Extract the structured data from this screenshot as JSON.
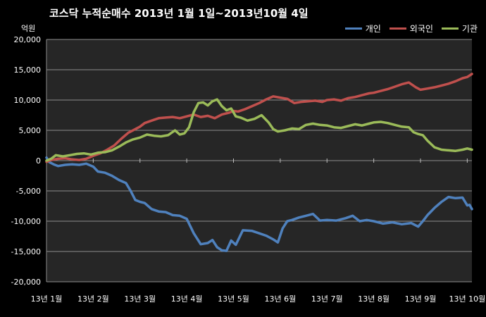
{
  "chart_data": {
    "type": "line",
    "title": "코스닥  누적순매수 2013년 1월 1일~2013년10월 4일",
    "ylabel": "억원",
    "ylim": [
      -20000,
      20000
    ],
    "yticks": [
      {
        "value": 20000,
        "label": "20,000"
      },
      {
        "value": 15000,
        "label": "15,000"
      },
      {
        "value": 10000,
        "label": "10,000"
      },
      {
        "value": 5000,
        "label": "5,000"
      },
      {
        "value": 0,
        "label": "0"
      },
      {
        "value": -5000,
        "label": "-5,000"
      },
      {
        "value": -10000,
        "label": "-10,000"
      },
      {
        "value": -15000,
        "label": "-15,000"
      },
      {
        "value": -20000,
        "label": "-20,000"
      }
    ],
    "xticks": [
      {
        "pos": 0.0,
        "label": "13년 1월"
      },
      {
        "pos": 1.0,
        "label": "13년 2월"
      },
      {
        "pos": 2.0,
        "label": "13년 3월"
      },
      {
        "pos": 3.0,
        "label": "13년 4월"
      },
      {
        "pos": 4.0,
        "label": "13년 5월"
      },
      {
        "pos": 5.0,
        "label": "13년 6월"
      },
      {
        "pos": 6.0,
        "label": "13년 7월"
      },
      {
        "pos": 7.0,
        "label": "13년 8월"
      },
      {
        "pos": 8.0,
        "label": "13년 9월"
      },
      {
        "pos": 9.0,
        "label": "13년 10월"
      }
    ],
    "xlim": [
      0,
      9.1
    ],
    "grid": true,
    "legend_position": "top-right",
    "series": [
      {
        "name": "개인",
        "color": "#4f81bd",
        "points": [
          [
            0.0,
            500
          ],
          [
            0.05,
            -200
          ],
          [
            0.15,
            -600
          ],
          [
            0.25,
            -900
          ],
          [
            0.4,
            -700
          ],
          [
            0.55,
            -600
          ],
          [
            0.7,
            -700
          ],
          [
            0.85,
            -500
          ],
          [
            1.0,
            -1000
          ],
          [
            1.1,
            -1800
          ],
          [
            1.25,
            -2000
          ],
          [
            1.4,
            -2500
          ],
          [
            1.55,
            -3200
          ],
          [
            1.7,
            -3700
          ],
          [
            1.8,
            -5000
          ],
          [
            1.9,
            -6500
          ],
          [
            2.0,
            -6800
          ],
          [
            2.1,
            -7000
          ],
          [
            2.25,
            -8000
          ],
          [
            2.4,
            -8400
          ],
          [
            2.55,
            -8500
          ],
          [
            2.7,
            -9000
          ],
          [
            2.85,
            -9100
          ],
          [
            3.0,
            -9600
          ],
          [
            3.15,
            -12000
          ],
          [
            3.3,
            -13800
          ],
          [
            3.45,
            -13600
          ],
          [
            3.55,
            -13100
          ],
          [
            3.65,
            -14300
          ],
          [
            3.75,
            -14800
          ],
          [
            3.85,
            -14900
          ],
          [
            3.95,
            -13200
          ],
          [
            4.05,
            -13900
          ],
          [
            4.2,
            -11500
          ],
          [
            4.4,
            -11600
          ],
          [
            4.55,
            -12000
          ],
          [
            4.7,
            -12400
          ],
          [
            4.85,
            -13000
          ],
          [
            4.95,
            -13500
          ],
          [
            5.05,
            -11200
          ],
          [
            5.15,
            -10000
          ],
          [
            5.25,
            -9800
          ],
          [
            5.4,
            -9400
          ],
          [
            5.55,
            -9100
          ],
          [
            5.7,
            -8800
          ],
          [
            5.85,
            -9900
          ],
          [
            6.0,
            -9800
          ],
          [
            6.2,
            -9900
          ],
          [
            6.4,
            -9500
          ],
          [
            6.55,
            -9100
          ],
          [
            6.7,
            -10000
          ],
          [
            6.85,
            -9800
          ],
          [
            7.0,
            -10000
          ],
          [
            7.2,
            -10400
          ],
          [
            7.4,
            -10200
          ],
          [
            7.6,
            -10500
          ],
          [
            7.8,
            -10300
          ],
          [
            7.95,
            -10900
          ],
          [
            8.05,
            -10000
          ],
          [
            8.15,
            -9000
          ],
          [
            8.3,
            -7800
          ],
          [
            8.45,
            -6800
          ],
          [
            8.6,
            -6000
          ],
          [
            8.75,
            -6200
          ],
          [
            8.9,
            -6100
          ],
          [
            9.0,
            -7400
          ],
          [
            9.05,
            -7300
          ],
          [
            9.1,
            -8000
          ]
        ]
      },
      {
        "name": "외국인",
        "color": "#c0504d",
        "points": [
          [
            0.0,
            -200
          ],
          [
            0.1,
            100
          ],
          [
            0.25,
            300
          ],
          [
            0.4,
            400
          ],
          [
            0.55,
            200
          ],
          [
            0.7,
            100
          ],
          [
            0.85,
            300
          ],
          [
            1.0,
            800
          ],
          [
            1.15,
            1200
          ],
          [
            1.3,
            1800
          ],
          [
            1.45,
            2500
          ],
          [
            1.6,
            3600
          ],
          [
            1.75,
            4600
          ],
          [
            1.9,
            5200
          ],
          [
            2.0,
            5600
          ],
          [
            2.1,
            6200
          ],
          [
            2.25,
            6600
          ],
          [
            2.4,
            7000
          ],
          [
            2.55,
            7100
          ],
          [
            2.7,
            7200
          ],
          [
            2.85,
            7000
          ],
          [
            3.0,
            7300
          ],
          [
            3.15,
            7600
          ],
          [
            3.3,
            7200
          ],
          [
            3.45,
            7400
          ],
          [
            3.6,
            7000
          ],
          [
            3.75,
            7600
          ],
          [
            3.9,
            7900
          ],
          [
            4.0,
            8200
          ],
          [
            4.1,
            8100
          ],
          [
            4.25,
            8500
          ],
          [
            4.4,
            9000
          ],
          [
            4.55,
            9500
          ],
          [
            4.7,
            10100
          ],
          [
            4.85,
            10600
          ],
          [
            5.0,
            10400
          ],
          [
            5.15,
            10200
          ],
          [
            5.3,
            9500
          ],
          [
            5.45,
            9700
          ],
          [
            5.6,
            9800
          ],
          [
            5.75,
            9900
          ],
          [
            5.9,
            9700
          ],
          [
            6.0,
            10000
          ],
          [
            6.15,
            10100
          ],
          [
            6.3,
            9900
          ],
          [
            6.45,
            10300
          ],
          [
            6.6,
            10500
          ],
          [
            6.75,
            10800
          ],
          [
            6.9,
            11100
          ],
          [
            7.0,
            11200
          ],
          [
            7.15,
            11500
          ],
          [
            7.3,
            11800
          ],
          [
            7.45,
            12200
          ],
          [
            7.6,
            12600
          ],
          [
            7.75,
            12900
          ],
          [
            7.9,
            12100
          ],
          [
            8.0,
            11700
          ],
          [
            8.15,
            11900
          ],
          [
            8.3,
            12100
          ],
          [
            8.45,
            12400
          ],
          [
            8.6,
            12700
          ],
          [
            8.75,
            13100
          ],
          [
            8.9,
            13600
          ],
          [
            9.0,
            13800
          ],
          [
            9.1,
            14300
          ]
        ]
      },
      {
        "name": "기관",
        "color": "#9bbb59",
        "points": [
          [
            0.0,
            0
          ],
          [
            0.1,
            300
          ],
          [
            0.2,
            900
          ],
          [
            0.35,
            700
          ],
          [
            0.5,
            900
          ],
          [
            0.65,
            1100
          ],
          [
            0.8,
            1200
          ],
          [
            0.95,
            1000
          ],
          [
            1.1,
            1300
          ],
          [
            1.25,
            1400
          ],
          [
            1.4,
            1700
          ],
          [
            1.55,
            2300
          ],
          [
            1.7,
            3000
          ],
          [
            1.85,
            3500
          ],
          [
            2.0,
            3800
          ],
          [
            2.15,
            4300
          ],
          [
            2.3,
            4100
          ],
          [
            2.45,
            4000
          ],
          [
            2.6,
            4200
          ],
          [
            2.75,
            5000
          ],
          [
            2.85,
            4300
          ],
          [
            2.95,
            4500
          ],
          [
            3.05,
            5500
          ],
          [
            3.15,
            8000
          ],
          [
            3.25,
            9500
          ],
          [
            3.35,
            9600
          ],
          [
            3.45,
            9100
          ],
          [
            3.55,
            9800
          ],
          [
            3.65,
            10100
          ],
          [
            3.75,
            9000
          ],
          [
            3.85,
            8300
          ],
          [
            3.95,
            8600
          ],
          [
            4.05,
            7300
          ],
          [
            4.15,
            7100
          ],
          [
            4.3,
            6600
          ],
          [
            4.45,
            6900
          ],
          [
            4.6,
            7500
          ],
          [
            4.75,
            6300
          ],
          [
            4.85,
            5200
          ],
          [
            4.95,
            4800
          ],
          [
            5.1,
            5000
          ],
          [
            5.25,
            5300
          ],
          [
            5.4,
            5200
          ],
          [
            5.55,
            5900
          ],
          [
            5.7,
            6100
          ],
          [
            5.85,
            5900
          ],
          [
            6.0,
            5800
          ],
          [
            6.15,
            5500
          ],
          [
            6.3,
            5400
          ],
          [
            6.45,
            5700
          ],
          [
            6.6,
            6000
          ],
          [
            6.75,
            5800
          ],
          [
            6.9,
            6100
          ],
          [
            7.0,
            6300
          ],
          [
            7.15,
            6400
          ],
          [
            7.3,
            6200
          ],
          [
            7.45,
            5900
          ],
          [
            7.6,
            5600
          ],
          [
            7.75,
            5500
          ],
          [
            7.85,
            4700
          ],
          [
            7.95,
            4400
          ],
          [
            8.05,
            4200
          ],
          [
            8.15,
            3300
          ],
          [
            8.3,
            2200
          ],
          [
            8.45,
            1800
          ],
          [
            8.6,
            1700
          ],
          [
            8.75,
            1600
          ],
          [
            8.9,
            1800
          ],
          [
            9.0,
            2000
          ],
          [
            9.1,
            1800
          ]
        ]
      }
    ]
  }
}
